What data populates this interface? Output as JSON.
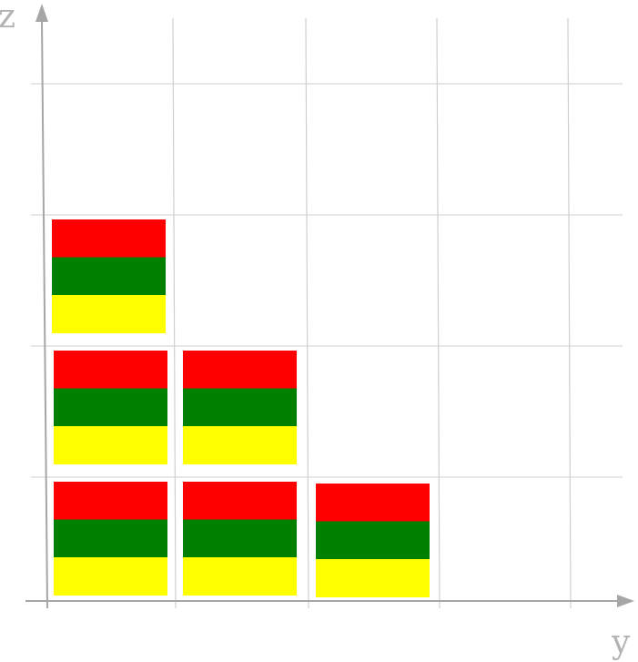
{
  "axes": {
    "horizontal_label": "y",
    "vertical_label": "z",
    "axis_color": "#a6a6a6",
    "grid_color": "#cfcfcf"
  },
  "layer_colors": {
    "top": "#ff0000",
    "middle": "#008000",
    "bottom": "#ffff00"
  },
  "stacks": [
    {
      "column": 1,
      "row": 1
    },
    {
      "column": 1,
      "row": 2
    },
    {
      "column": 1,
      "row": 3
    },
    {
      "column": 2,
      "row": 1
    },
    {
      "column": 2,
      "row": 2
    },
    {
      "column": 3,
      "row": 1
    }
  ]
}
